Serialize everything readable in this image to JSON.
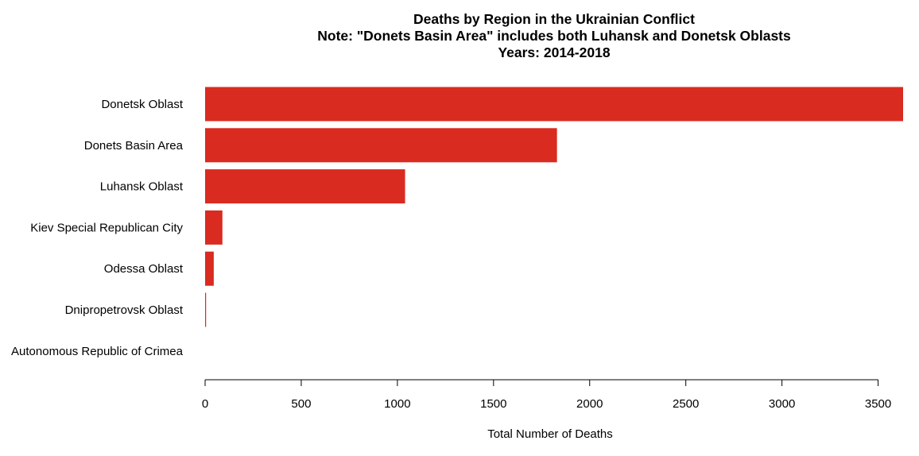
{
  "chart_data": {
    "type": "bar",
    "orientation": "horizontal",
    "title": [
      "Deaths by Region in the Ukrainian Conflict",
      "Note: \"Donets Basin Area\" includes both Luhansk and Donetsk Oblasts",
      "Years: 2014-2018"
    ],
    "categories": [
      "Donetsk Oblast",
      "Donets Basin Area",
      "Luhansk Oblast",
      "Kiev Special Republican City",
      "Odessa Oblast",
      "Dnipropetrovsk Oblast",
      "Autonomous Republic of Crimea"
    ],
    "values": [
      3630,
      1830,
      1040,
      90,
      45,
      5,
      0
    ],
    "xlabel": "Total Number of Deaths",
    "ylabel": "",
    "xlim": [
      0,
      3630
    ],
    "xticks": [
      "0",
      "500",
      "1000",
      "1500",
      "2000",
      "2500",
      "3000",
      "3500"
    ],
    "grid": false,
    "legend": "none",
    "bar_color": "#d92b20"
  }
}
